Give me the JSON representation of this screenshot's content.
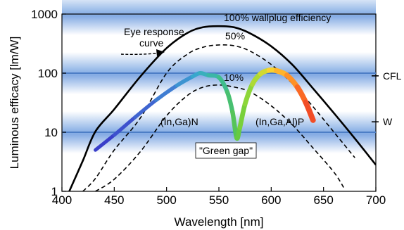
{
  "chart_data": {
    "type": "line",
    "title": "",
    "xlabel": "Wavelength [nm]",
    "ylabel": "Luminous efficacy [lm/W]",
    "xlim": [
      400,
      700
    ],
    "ylim": [
      1,
      1000
    ],
    "y_scale": "log",
    "xticks": [
      400,
      450,
      500,
      550,
      600,
      650,
      700
    ],
    "yticks": [
      {
        "value": 1,
        "label": "1"
      },
      {
        "value": 10,
        "label": "10"
      },
      {
        "value": 100,
        "label": "100"
      },
      {
        "value": 1000,
        "label": "1000"
      }
    ],
    "right_markers": [
      {
        "value": 90,
        "label": "CFL"
      },
      {
        "value": 15,
        "label": "W"
      }
    ],
    "series": [
      {
        "name": "100% wallplug efficiency",
        "style": "solid",
        "x": [
          407,
          420,
          432,
          450,
          475,
          500,
          520,
          535,
          550,
          565,
          580,
          600,
          620,
          640,
          660,
          680,
          700
        ],
        "y": [
          1.0,
          3.3,
          10.3,
          24.5,
          88,
          265,
          480,
          600,
          625,
          595,
          470,
          285,
          140,
          55,
          21,
          7.8,
          2.8
        ]
      },
      {
        "name": "50%",
        "style": "dashed",
        "x": [
          420,
          432,
          450,
          475,
          500,
          520,
          535,
          550,
          565,
          580,
          600,
          620,
          640,
          660,
          680
        ],
        "y": [
          1.0,
          1.65,
          5.0,
          17.5,
          100,
          210,
          275,
          300,
          290,
          235,
          140,
          67,
          27,
          10,
          3.7
        ]
      },
      {
        "name": "10%",
        "style": "dashed",
        "x": [
          432,
          450,
          475,
          500,
          520,
          535,
          550,
          565,
          580,
          600,
          620,
          640,
          660,
          670
        ],
        "y": [
          1.0,
          1.6,
          4.7,
          19,
          42,
          58,
          63,
          58,
          48,
          28,
          13.5,
          5.4,
          2.1,
          1.1
        ]
      }
    ],
    "led_curve": {
      "x": [
        432,
        450,
        470,
        490,
        510,
        525,
        532,
        540,
        550,
        558,
        563,
        567,
        570,
        575,
        582,
        590,
        598,
        605,
        615,
        625,
        633,
        640
      ],
      "y": [
        5.0,
        9.0,
        18,
        35,
        62,
        88,
        100,
        92,
        85,
        48,
        22,
        8.0,
        12,
        30,
        65,
        98,
        112,
        110,
        92,
        58,
        32,
        16
      ],
      "colors": [
        "#3a3fc9",
        "#3f5ccf",
        "#3f83d3",
        "#38a6cf",
        "#3bb3b6",
        "#3fbd8a",
        "#4fc25e",
        "#6ccc3c",
        "#8bd63a",
        "#bedc32",
        "#ffd02e",
        "#ff9a28",
        "#f95a24",
        "#e6392a"
      ]
    },
    "annotations": {
      "eye_response": "Eye response\ncurve",
      "label_100": "100% wallplug efficiency",
      "label_50": "50%",
      "label_10": "10%",
      "ingan": "(In,Ga)N",
      "ingaalp": "(In,Ga,Al)P",
      "green_gap": "\"Green gap\""
    }
  }
}
